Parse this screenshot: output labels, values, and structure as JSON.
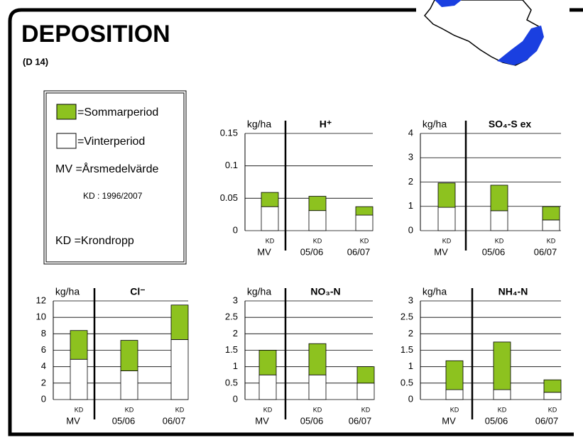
{
  "header": {
    "title": "DEPOSITION",
    "subtitle": "(D 14)"
  },
  "legend": {
    "items": [
      {
        "label": "=Sommarperiod",
        "color": "#8dc21f"
      },
      {
        "label": "=Vinterperiod",
        "color": "#ffffff"
      },
      {
        "label": "MV =Årsmedelvärde"
      },
      {
        "label": "KD : 1996/2007"
      },
      {
        "label": "KD =Krondropp"
      }
    ]
  },
  "chart_data": [
    {
      "type": "stacked-bar",
      "title": "H⁺",
      "y_unit": "kg/ha",
      "categories": [
        "MV",
        "05/06",
        "06/07"
      ],
      "bar_labels": [
        "KD",
        "KD",
        "KD"
      ],
      "series": [
        {
          "color": "#ffffff",
          "values": [
            0.037,
            0.031,
            0.024
          ]
        },
        {
          "color": "#8dc21f",
          "values": [
            0.022,
            0.022,
            0.013
          ]
        }
      ],
      "ylim": [
        0,
        0.15
      ],
      "yticks": [
        0,
        0.05,
        0.1,
        0.15
      ],
      "grid": true
    },
    {
      "type": "stacked-bar",
      "title": "SO₄-S ex",
      "y_unit": "kg/ha",
      "categories": [
        "MV",
        "05/06",
        "06/07"
      ],
      "bar_labels": [
        "KD",
        "KD",
        "KD"
      ],
      "series": [
        {
          "color": "#ffffff",
          "values": [
            0.96,
            0.82,
            0.44
          ]
        },
        {
          "color": "#8dc21f",
          "values": [
            1.0,
            1.05,
            0.55
          ]
        }
      ],
      "ylim": [
        0,
        4
      ],
      "yticks": [
        0,
        1,
        2,
        3,
        4
      ],
      "grid": true
    },
    {
      "type": "stacked-bar",
      "title": "Cl⁻",
      "y_unit": "kg/ha",
      "categories": [
        "MV",
        "05/06",
        "06/07"
      ],
      "bar_labels": [
        "KD",
        "KD",
        "KD"
      ],
      "series": [
        {
          "color": "#ffffff",
          "values": [
            4.9,
            3.5,
            7.3
          ]
        },
        {
          "color": "#8dc21f",
          "values": [
            3.5,
            3.7,
            4.2
          ]
        }
      ],
      "ylim": [
        0,
        12
      ],
      "yticks": [
        0,
        2,
        4,
        6,
        8,
        10,
        12
      ],
      "grid": true
    },
    {
      "type": "stacked-bar",
      "title": "NO₃-N",
      "y_unit": "kg/ha",
      "categories": [
        "MV",
        "05/06",
        "06/07"
      ],
      "bar_labels": [
        "KD",
        "KD",
        "KD"
      ],
      "series": [
        {
          "color": "#ffffff",
          "values": [
            0.75,
            0.75,
            0.5
          ]
        },
        {
          "color": "#8dc21f",
          "values": [
            0.75,
            0.95,
            0.5
          ]
        }
      ],
      "ylim": [
        0,
        3
      ],
      "yticks": [
        0,
        0.5,
        1,
        1.5,
        2,
        2.5,
        3
      ],
      "grid": true
    },
    {
      "type": "stacked-bar",
      "title": "NH₄-N",
      "y_unit": "kg/ha",
      "categories": [
        "MV",
        "05/06",
        "06/07"
      ],
      "bar_labels": [
        "KD",
        "KD",
        "KD"
      ],
      "series": [
        {
          "color": "#ffffff",
          "values": [
            0.3,
            0.3,
            0.22
          ]
        },
        {
          "color": "#8dc21f",
          "values": [
            0.88,
            1.45,
            0.38
          ]
        }
      ],
      "ylim": [
        0,
        3
      ],
      "yticks": [
        0,
        0.5,
        1,
        1.5,
        2,
        2.5,
        3
      ],
      "grid": true
    }
  ]
}
